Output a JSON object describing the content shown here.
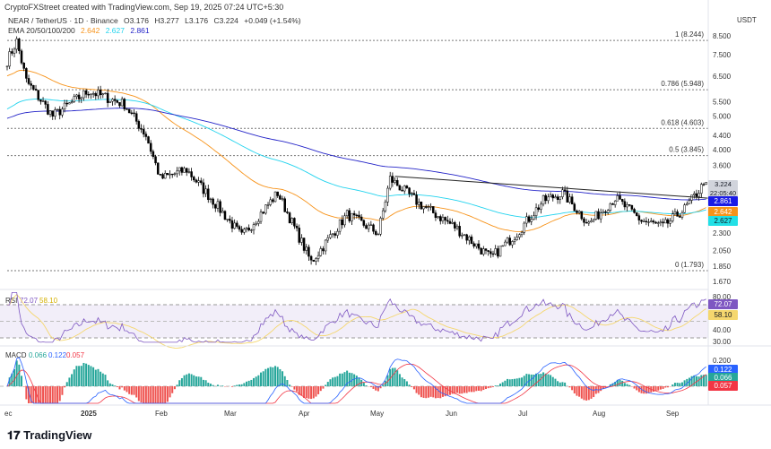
{
  "header": {
    "credit": "CryptoFXStreet created with TradingView.com, Sep 19, 2025 07:24 UTC+5:30",
    "symbol": "NEAR / TetherUS · 1D · Binance",
    "open": "O3.176",
    "high": "H3.277",
    "low": "L3.176",
    "close": "C3.224",
    "change": "+0.049 (+1.54%)",
    "ema_label": "EMA 20/50/100/200",
    "ema_values": [
      {
        "value": "2.642",
        "color": "#f7931a"
      },
      {
        "value": "2.627",
        "color": "#22d3ee"
      },
      {
        "value": "2.861",
        "color": "#2424c8"
      }
    ]
  },
  "axis": {
    "currency": "USDT",
    "price_ticks": [
      "8.500",
      "7.500",
      "6.500",
      "5.500",
      "5.000",
      "4.400",
      "4.000",
      "3.600",
      "2.300",
      "2.050",
      "1.850",
      "1.670"
    ],
    "time_ticks": [
      "ec",
      "2025",
      "Feb",
      "Mar",
      "Apr",
      "May",
      "Jun",
      "Jul",
      "Aug",
      "Sep"
    ]
  },
  "tags": {
    "last_price": "3.224",
    "countdown": "22:05:40",
    "ema200": "2.861",
    "ema50": "2.642",
    "ema100": "2.627"
  },
  "rsi": {
    "label": "RSI",
    "value": "72.07",
    "ma": "58.10",
    "ticks": [
      "80.00",
      "40.00",
      "30.00"
    ]
  },
  "macd": {
    "label": "MACD",
    "hist": "0.066",
    "macd": "0.122",
    "signal": "0.057",
    "tick": "0.200"
  },
  "fib": [
    {
      "label": "1 (8.244)",
      "price": 8.244
    },
    {
      "label": "0.786 (5.948)",
      "price": 5.948
    },
    {
      "label": "0.618 (4.603)",
      "price": 4.603
    },
    {
      "label": "0.5 (3.845)",
      "price": 3.845
    },
    {
      "label": "0 (1.793)",
      "price": 1.793
    }
  ],
  "branding": "TradingView",
  "colors": {
    "up": "#ffffff",
    "down": "#000000",
    "ema50": "#f7931a",
    "ema100": "#22d3ee",
    "ema200": "#2424c8",
    "rsi": "#7e57c2",
    "rsi_ma": "#f5d76e",
    "macd": "#2962ff",
    "signal": "#f23645",
    "hist_up": "#26a69a",
    "hist_down": "#ef5350"
  },
  "chart_data": {
    "type": "candlestick",
    "title": "NEAR / TetherUS · 1D · Binance",
    "ylabel": "USDT",
    "yscale": "log",
    "ylim": [
      1.6,
      8.8
    ],
    "xlim": [
      "2024-12-01",
      "2025-09-19"
    ],
    "trendline": [
      [
        "2025-05-12",
        3.35
      ],
      [
        "2025-09-19",
        2.9
      ]
    ],
    "close_path": [
      [
        "2024-12-01",
        7.2
      ],
      [
        "2024-12-05",
        8.2
      ],
      [
        "2024-12-09",
        6.3
      ],
      [
        "2024-12-20",
        5.0
      ],
      [
        "2025-01-04",
        5.9
      ],
      [
        "2025-01-19",
        5.4
      ],
      [
        "2025-01-28",
        4.4
      ],
      [
        "2025-02-03",
        3.3
      ],
      [
        "2025-02-14",
        3.5
      ],
      [
        "2025-02-25",
        2.85
      ],
      [
        "2025-03-09",
        2.25
      ],
      [
        "2025-03-24",
        3.0
      ],
      [
        "2025-04-07",
        1.9
      ],
      [
        "2025-04-22",
        2.6
      ],
      [
        "2025-05-05",
        2.3
      ],
      [
        "2025-05-10",
        3.3
      ],
      [
        "2025-05-22",
        2.8
      ],
      [
        "2025-06-06",
        2.4
      ],
      [
        "2025-06-21",
        1.95
      ],
      [
        "2025-07-02",
        2.3
      ],
      [
        "2025-07-13",
        2.85
      ],
      [
        "2025-07-21",
        3.0
      ],
      [
        "2025-08-01",
        2.45
      ],
      [
        "2025-08-12",
        2.9
      ],
      [
        "2025-08-23",
        2.5
      ],
      [
        "2025-09-01",
        2.4
      ],
      [
        "2025-09-10",
        2.7
      ],
      [
        "2025-09-18",
        3.176
      ],
      [
        "2025-09-19",
        3.224
      ]
    ]
  }
}
